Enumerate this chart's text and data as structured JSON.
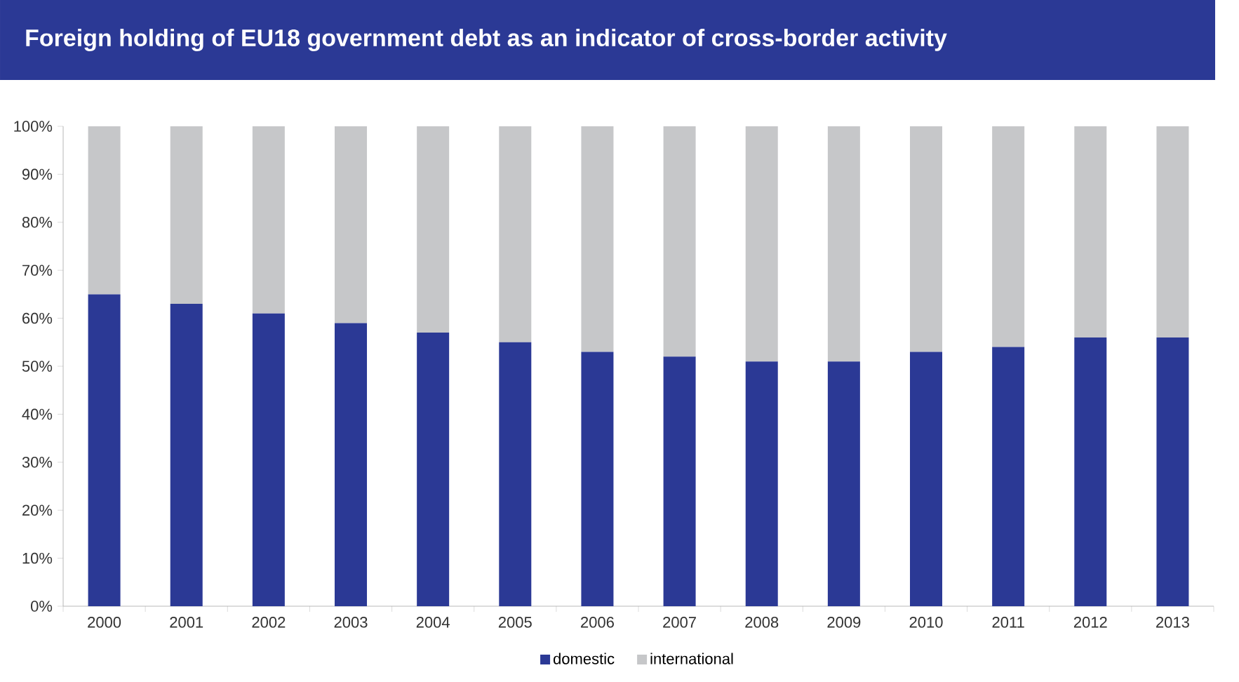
{
  "chart_data": {
    "type": "bar",
    "stacked": true,
    "title": "Foreign holding of EU18 government debt as an indicator of cross-border activity",
    "categories": [
      "2000",
      "2001",
      "2002",
      "2003",
      "2004",
      "2005",
      "2006",
      "2007",
      "2008",
      "2009",
      "2010",
      "2011",
      "2012",
      "2013"
    ],
    "series": [
      {
        "name": "domestic",
        "color": "#2b3995",
        "values": [
          65,
          63,
          61,
          59,
          57,
          55,
          53,
          52,
          51,
          51,
          53,
          54,
          56,
          56
        ]
      },
      {
        "name": "international",
        "color": "#c6c7c9",
        "values": [
          35,
          37,
          39,
          41,
          43,
          45,
          47,
          48,
          49,
          49,
          47,
          46,
          44,
          44
        ]
      }
    ],
    "ylim": [
      0,
      100
    ],
    "yticks": [
      {
        "value": 0,
        "label": "0%"
      },
      {
        "value": 10,
        "label": "10%"
      },
      {
        "value": 20,
        "label": "20%"
      },
      {
        "value": 30,
        "label": "30%"
      },
      {
        "value": 40,
        "label": "40%"
      },
      {
        "value": 50,
        "label": "50%"
      },
      {
        "value": 60,
        "label": "60%"
      },
      {
        "value": 70,
        "label": "70%"
      },
      {
        "value": 80,
        "label": "80%"
      },
      {
        "value": 90,
        "label": "90%"
      },
      {
        "value": 100,
        "label": "100%"
      }
    ],
    "legend": "bottom"
  }
}
